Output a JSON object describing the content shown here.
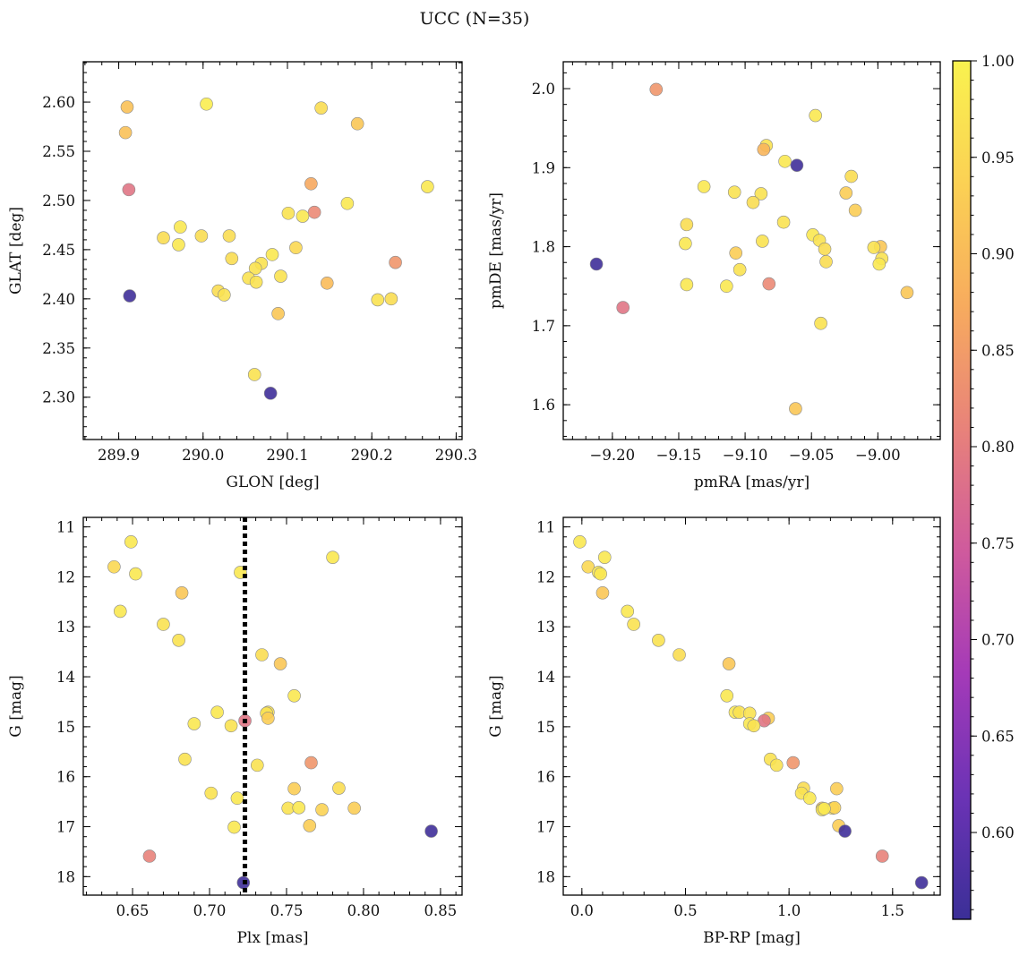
{
  "figure": {
    "title": "UCC (N=35)"
  },
  "colorbar": {
    "vmin": 0.555,
    "vmax": 1.0,
    "ticks": [
      0.6,
      0.65,
      0.7,
      0.75,
      0.8,
      0.85,
      0.9,
      0.95,
      1.0
    ],
    "tick_labels": [
      "0.60",
      "0.65",
      "0.70",
      "0.75",
      "0.80",
      "0.85",
      "0.90",
      "0.95",
      "1.00"
    ],
    "colormap": "plasma (truncated)",
    "stops": [
      "#3b2f97",
      "#6b33b5",
      "#a43ab8",
      "#cf5a9d",
      "#e8827a",
      "#f7ab5e",
      "#fbd154",
      "#f9f24f"
    ]
  },
  "chart_data": [
    {
      "type": "scatter",
      "panel": "top-left",
      "title": "",
      "xlabel": "GLON [deg]",
      "ylabel": "GLAT [deg]",
      "xlim": [
        289.858,
        290.307
      ],
      "ylim": [
        2.257,
        2.641
      ],
      "xticks": [
        289.9,
        290.0,
        290.1,
        290.2,
        290.3
      ],
      "xtick_labels": [
        "289.9",
        "290.0",
        "290.1",
        "290.2",
        "290.3"
      ],
      "yticks": [
        2.3,
        2.35,
        2.4,
        2.45,
        2.5,
        2.55,
        2.6
      ],
      "ytick_labels": [
        "2.30",
        "2.35",
        "2.40",
        "2.45",
        "2.50",
        "2.55",
        "2.60"
      ],
      "invert_y": false,
      "grid": false,
      "points": [
        {
          "x": 290.004,
          "y": 2.598,
          "c": 0.99
        },
        {
          "x": 289.91,
          "y": 2.595,
          "c": 0.91
        },
        {
          "x": 290.14,
          "y": 2.594,
          "c": 0.96
        },
        {
          "x": 290.183,
          "y": 2.578,
          "c": 0.92
        },
        {
          "x": 289.908,
          "y": 2.569,
          "c": 0.91
        },
        {
          "x": 290.128,
          "y": 2.517,
          "c": 0.87
        },
        {
          "x": 290.266,
          "y": 2.514,
          "c": 0.98
        },
        {
          "x": 289.912,
          "y": 2.511,
          "c": 0.79
        },
        {
          "x": 290.171,
          "y": 2.497,
          "c": 0.98
        },
        {
          "x": 290.132,
          "y": 2.488,
          "c": 0.82
        },
        {
          "x": 290.101,
          "y": 2.487,
          "c": 0.97
        },
        {
          "x": 290.118,
          "y": 2.484,
          "c": 0.98
        },
        {
          "x": 289.973,
          "y": 2.473,
          "c": 0.98
        },
        {
          "x": 289.998,
          "y": 2.464,
          "c": 0.96
        },
        {
          "x": 290.031,
          "y": 2.464,
          "c": 0.96
        },
        {
          "x": 289.953,
          "y": 2.462,
          "c": 0.96
        },
        {
          "x": 289.971,
          "y": 2.455,
          "c": 0.98
        },
        {
          "x": 290.11,
          "y": 2.452,
          "c": 0.95
        },
        {
          "x": 290.082,
          "y": 2.445,
          "c": 0.98
        },
        {
          "x": 290.034,
          "y": 2.441,
          "c": 0.96
        },
        {
          "x": 290.228,
          "y": 2.437,
          "c": 0.84
        },
        {
          "x": 290.069,
          "y": 2.436,
          "c": 0.97
        },
        {
          "x": 290.062,
          "y": 2.431,
          "c": 0.97
        },
        {
          "x": 290.092,
          "y": 2.423,
          "c": 0.97
        },
        {
          "x": 290.054,
          "y": 2.421,
          "c": 0.97
        },
        {
          "x": 290.063,
          "y": 2.417,
          "c": 0.97
        },
        {
          "x": 290.147,
          "y": 2.416,
          "c": 0.9
        },
        {
          "x": 290.018,
          "y": 2.408,
          "c": 0.96
        },
        {
          "x": 290.025,
          "y": 2.404,
          "c": 0.97
        },
        {
          "x": 289.913,
          "y": 2.403,
          "c": 0.56
        },
        {
          "x": 290.223,
          "y": 2.4,
          "c": 0.96
        },
        {
          "x": 290.207,
          "y": 2.399,
          "c": 0.97
        },
        {
          "x": 290.089,
          "y": 2.385,
          "c": 0.92
        },
        {
          "x": 290.061,
          "y": 2.323,
          "c": 0.97
        },
        {
          "x": 290.08,
          "y": 2.304,
          "c": 0.56
        }
      ]
    },
    {
      "type": "scatter",
      "panel": "top-right",
      "title": "",
      "xlabel": "pmRA [mas/yr]",
      "ylabel": "pmDE [mas/yr]",
      "xlim": [
        -9.237,
        -8.953
      ],
      "ylim": [
        1.556,
        2.034
      ],
      "xticks": [
        -9.2,
        -9.15,
        -9.1,
        -9.05,
        -9.0
      ],
      "xtick_labels": [
        "−9.20",
        "−9.15",
        "−9.10",
        "−9.05",
        "−9.00"
      ],
      "yticks": [
        1.6,
        1.7,
        1.8,
        1.9,
        2.0
      ],
      "ytick_labels": [
        "1.6",
        "1.7",
        "1.8",
        "1.9",
        "2.0"
      ],
      "invert_y": false,
      "grid": false,
      "points": [
        {
          "x": -9.167,
          "y": 1.999,
          "c": 0.84
        },
        {
          "x": -9.047,
          "y": 1.966,
          "c": 0.98
        },
        {
          "x": -9.084,
          "y": 1.928,
          "c": 0.97
        },
        {
          "x": -9.086,
          "y": 1.923,
          "c": 0.89
        },
        {
          "x": -9.07,
          "y": 1.908,
          "c": 0.98
        },
        {
          "x": -9.061,
          "y": 1.903,
          "c": 0.56
        },
        {
          "x": -9.02,
          "y": 1.889,
          "c": 0.96
        },
        {
          "x": -9.131,
          "y": 1.876,
          "c": 0.98
        },
        {
          "x": -9.108,
          "y": 1.869,
          "c": 0.97
        },
        {
          "x": -9.024,
          "y": 1.868,
          "c": 0.93
        },
        {
          "x": -9.088,
          "y": 1.867,
          "c": 0.97
        },
        {
          "x": -9.094,
          "y": 1.856,
          "c": 0.96
        },
        {
          "x": -9.017,
          "y": 1.846,
          "c": 0.93
        },
        {
          "x": -9.071,
          "y": 1.831,
          "c": 0.97
        },
        {
          "x": -9.144,
          "y": 1.828,
          "c": 0.96
        },
        {
          "x": -9.049,
          "y": 1.815,
          "c": 0.98
        },
        {
          "x": -9.087,
          "y": 1.807,
          "c": 0.97
        },
        {
          "x": -9.044,
          "y": 1.808,
          "c": 0.97
        },
        {
          "x": -9.145,
          "y": 1.804,
          "c": 0.98
        },
        {
          "x": -8.998,
          "y": 1.8,
          "c": 0.92
        },
        {
          "x": -9.003,
          "y": 1.799,
          "c": 0.97
        },
        {
          "x": -9.04,
          "y": 1.797,
          "c": 0.96
        },
        {
          "x": -9.107,
          "y": 1.792,
          "c": 0.93
        },
        {
          "x": -8.997,
          "y": 1.785,
          "c": 0.97
        },
        {
          "x": -9.039,
          "y": 1.781,
          "c": 0.96
        },
        {
          "x": -8.999,
          "y": 1.778,
          "c": 0.98
        },
        {
          "x": -9.212,
          "y": 1.778,
          "c": 0.56
        },
        {
          "x": -9.104,
          "y": 1.771,
          "c": 0.97
        },
        {
          "x": -9.082,
          "y": 1.753,
          "c": 0.82
        },
        {
          "x": -9.144,
          "y": 1.752,
          "c": 0.98
        },
        {
          "x": -9.114,
          "y": 1.75,
          "c": 0.98
        },
        {
          "x": -8.978,
          "y": 1.742,
          "c": 0.92
        },
        {
          "x": -9.192,
          "y": 1.723,
          "c": 0.79
        },
        {
          "x": -9.043,
          "y": 1.703,
          "c": 0.97
        },
        {
          "x": -9.062,
          "y": 1.595,
          "c": 0.92
        }
      ]
    },
    {
      "type": "scatter",
      "panel": "bottom-left",
      "title": "",
      "xlabel": "Plx [mas]",
      "ylabel": "G [mag]",
      "xlim": [
        0.618,
        0.864
      ],
      "ylim": [
        18.37,
        10.81
      ],
      "xticks": [
        0.65,
        0.7,
        0.75,
        0.8,
        0.85
      ],
      "xtick_labels": [
        "0.65",
        "0.70",
        "0.75",
        "0.80",
        "0.85"
      ],
      "yticks": [
        11,
        12,
        13,
        14,
        15,
        16,
        17,
        18
      ],
      "ytick_labels": [
        "11",
        "12",
        "13",
        "14",
        "15",
        "16",
        "17",
        "18"
      ],
      "invert_y": true,
      "grid": false,
      "vline": {
        "x": 0.723,
        "style": "dotted",
        "color": "#000000"
      },
      "points": [
        {
          "x": 0.649,
          "y": 11.3,
          "c": 0.98
        },
        {
          "x": 0.78,
          "y": 11.61,
          "c": 0.98
        },
        {
          "x": 0.638,
          "y": 11.8,
          "c": 0.95
        },
        {
          "x": 0.72,
          "y": 11.91,
          "c": 0.98
        },
        {
          "x": 0.652,
          "y": 11.94,
          "c": 0.98
        },
        {
          "x": 0.682,
          "y": 12.32,
          "c": 0.92
        },
        {
          "x": 0.642,
          "y": 12.69,
          "c": 0.98
        },
        {
          "x": 0.67,
          "y": 12.95,
          "c": 0.97
        },
        {
          "x": 0.68,
          "y": 13.27,
          "c": 0.97
        },
        {
          "x": 0.734,
          "y": 13.56,
          "c": 0.96
        },
        {
          "x": 0.746,
          "y": 13.74,
          "c": 0.92
        },
        {
          "x": 0.755,
          "y": 14.38,
          "c": 0.98
        },
        {
          "x": 0.705,
          "y": 14.71,
          "c": 0.98
        },
        {
          "x": 0.738,
          "y": 14.71,
          "c": 0.97
        },
        {
          "x": 0.737,
          "y": 14.73,
          "c": 0.97
        },
        {
          "x": 0.738,
          "y": 14.83,
          "c": 0.93
        },
        {
          "x": 0.723,
          "y": 14.88,
          "c": 0.79
        },
        {
          "x": 0.69,
          "y": 14.94,
          "c": 0.98
        },
        {
          "x": 0.714,
          "y": 14.98,
          "c": 0.97
        },
        {
          "x": 0.684,
          "y": 15.65,
          "c": 0.97
        },
        {
          "x": 0.766,
          "y": 15.72,
          "c": 0.84
        },
        {
          "x": 0.731,
          "y": 15.77,
          "c": 0.97
        },
        {
          "x": 0.784,
          "y": 16.23,
          "c": 0.96
        },
        {
          "x": 0.755,
          "y": 16.24,
          "c": 0.93
        },
        {
          "x": 0.701,
          "y": 16.33,
          "c": 0.97
        },
        {
          "x": 0.718,
          "y": 16.43,
          "c": 0.98
        },
        {
          "x": 0.751,
          "y": 16.63,
          "c": 0.97
        },
        {
          "x": 0.794,
          "y": 16.63,
          "c": 0.93
        },
        {
          "x": 0.758,
          "y": 16.62,
          "c": 0.98
        },
        {
          "x": 0.773,
          "y": 16.66,
          "c": 0.94
        },
        {
          "x": 0.716,
          "y": 17.01,
          "c": 0.98
        },
        {
          "x": 0.765,
          "y": 16.98,
          "c": 0.93
        },
        {
          "x": 0.844,
          "y": 17.09,
          "c": 0.56
        },
        {
          "x": 0.661,
          "y": 17.59,
          "c": 0.81
        },
        {
          "x": 0.722,
          "y": 18.12,
          "c": 0.56
        }
      ]
    },
    {
      "type": "scatter",
      "panel": "bottom-right",
      "title": "",
      "xlabel": "BP-RP [mag]",
      "ylabel": "G [mag]",
      "xlim": [
        -0.09,
        1.73
      ],
      "ylim": [
        18.37,
        10.81
      ],
      "xticks": [
        0.0,
        0.5,
        1.0,
        1.5
      ],
      "xtick_labels": [
        "0.0",
        "0.5",
        "1.0",
        "1.5"
      ],
      "yticks": [
        11,
        12,
        13,
        14,
        15,
        16,
        17,
        18
      ],
      "ytick_labels": [
        "11",
        "12",
        "13",
        "14",
        "15",
        "16",
        "17",
        "18"
      ],
      "invert_y": true,
      "grid": false,
      "points": [
        {
          "x": -0.01,
          "y": 11.3,
          "c": 0.98
        },
        {
          "x": 0.11,
          "y": 11.61,
          "c": 0.98
        },
        {
          "x": 0.03,
          "y": 11.8,
          "c": 0.95
        },
        {
          "x": 0.08,
          "y": 11.91,
          "c": 0.98
        },
        {
          "x": 0.09,
          "y": 11.94,
          "c": 0.98
        },
        {
          "x": 0.1,
          "y": 12.32,
          "c": 0.92
        },
        {
          "x": 0.22,
          "y": 12.69,
          "c": 0.98
        },
        {
          "x": 0.25,
          "y": 12.95,
          "c": 0.97
        },
        {
          "x": 0.37,
          "y": 13.27,
          "c": 0.97
        },
        {
          "x": 0.47,
          "y": 13.56,
          "c": 0.96
        },
        {
          "x": 0.71,
          "y": 13.74,
          "c": 0.92
        },
        {
          "x": 0.7,
          "y": 14.38,
          "c": 0.98
        },
        {
          "x": 0.74,
          "y": 14.71,
          "c": 0.98
        },
        {
          "x": 0.76,
          "y": 14.71,
          "c": 0.97
        },
        {
          "x": 0.81,
          "y": 14.73,
          "c": 0.97
        },
        {
          "x": 0.9,
          "y": 14.83,
          "c": 0.93
        },
        {
          "x": 0.88,
          "y": 14.88,
          "c": 0.79
        },
        {
          "x": 0.81,
          "y": 14.94,
          "c": 0.98
        },
        {
          "x": 0.83,
          "y": 14.98,
          "c": 0.97
        },
        {
          "x": 0.91,
          "y": 15.65,
          "c": 0.97
        },
        {
          "x": 1.02,
          "y": 15.72,
          "c": 0.84
        },
        {
          "x": 0.94,
          "y": 15.77,
          "c": 0.97
        },
        {
          "x": 1.07,
          "y": 16.23,
          "c": 0.96
        },
        {
          "x": 1.23,
          "y": 16.24,
          "c": 0.93
        },
        {
          "x": 1.06,
          "y": 16.33,
          "c": 0.97
        },
        {
          "x": 1.1,
          "y": 16.43,
          "c": 0.98
        },
        {
          "x": 1.21,
          "y": 16.63,
          "c": 0.97
        },
        {
          "x": 1.16,
          "y": 16.63,
          "c": 0.93
        },
        {
          "x": 1.16,
          "y": 16.66,
          "c": 0.98
        },
        {
          "x": 1.22,
          "y": 16.62,
          "c": 0.94
        },
        {
          "x": 1.24,
          "y": 16.98,
          "c": 0.93
        },
        {
          "x": 1.27,
          "y": 17.09,
          "c": 0.56
        },
        {
          "x": 1.45,
          "y": 17.59,
          "c": 0.81
        },
        {
          "x": 1.64,
          "y": 18.12,
          "c": 0.56
        },
        {
          "x": 1.17,
          "y": 16.64,
          "c": 0.98
        }
      ]
    }
  ]
}
